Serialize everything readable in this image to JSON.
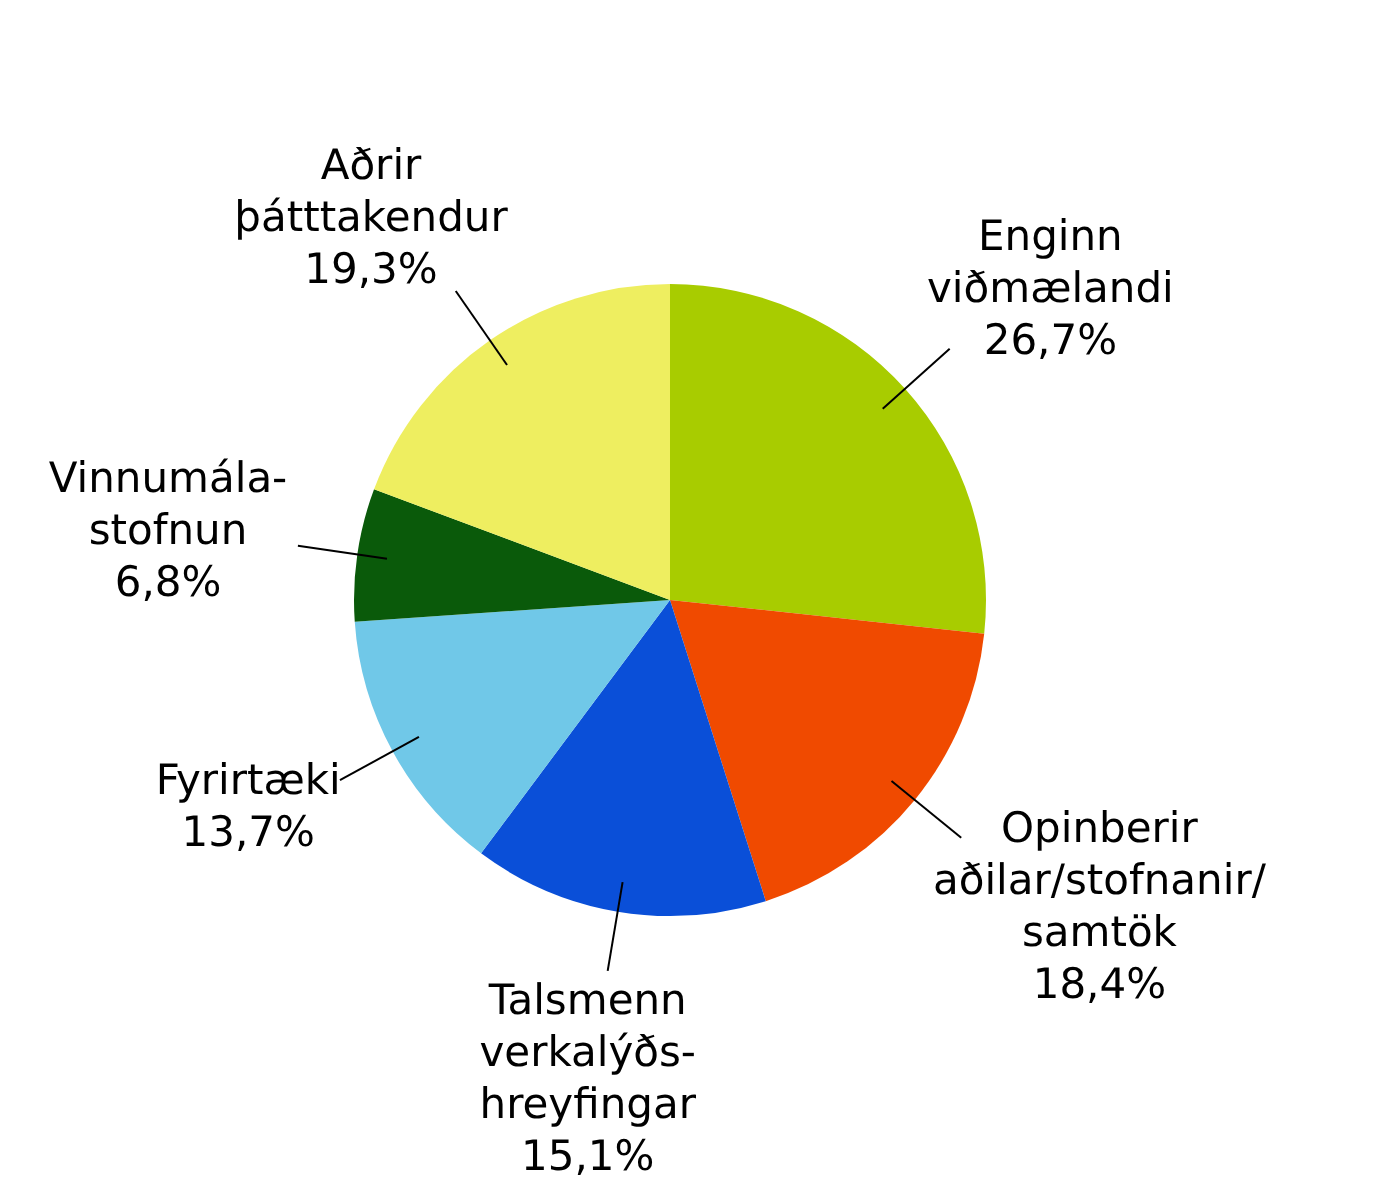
{
  "chart_data": {
    "type": "pie",
    "categories": [
      "Enginn\nviðmælandi",
      "Opinberir\naðilar/stofnanir/\nsamtök",
      "Talsmenn\nverkalýðs-\nhreyfingar",
      "Fyrirtæki",
      "Vinnumála-\nstofnun",
      "Aðrir\nþátttakendur"
    ],
    "values": [
      26.7,
      18.4,
      15.1,
      13.7,
      6.8,
      19.3
    ],
    "value_labels": [
      "26,7%",
      "18,4%",
      "15,1%",
      "13,7%",
      "6,8%",
      "19,3%"
    ],
    "colors": [
      "#a8cc00",
      "#f04a00",
      "#0a4fd8",
      "#70c8e8",
      "#0a5a0a",
      "#eeee60"
    ],
    "legend": false
  }
}
